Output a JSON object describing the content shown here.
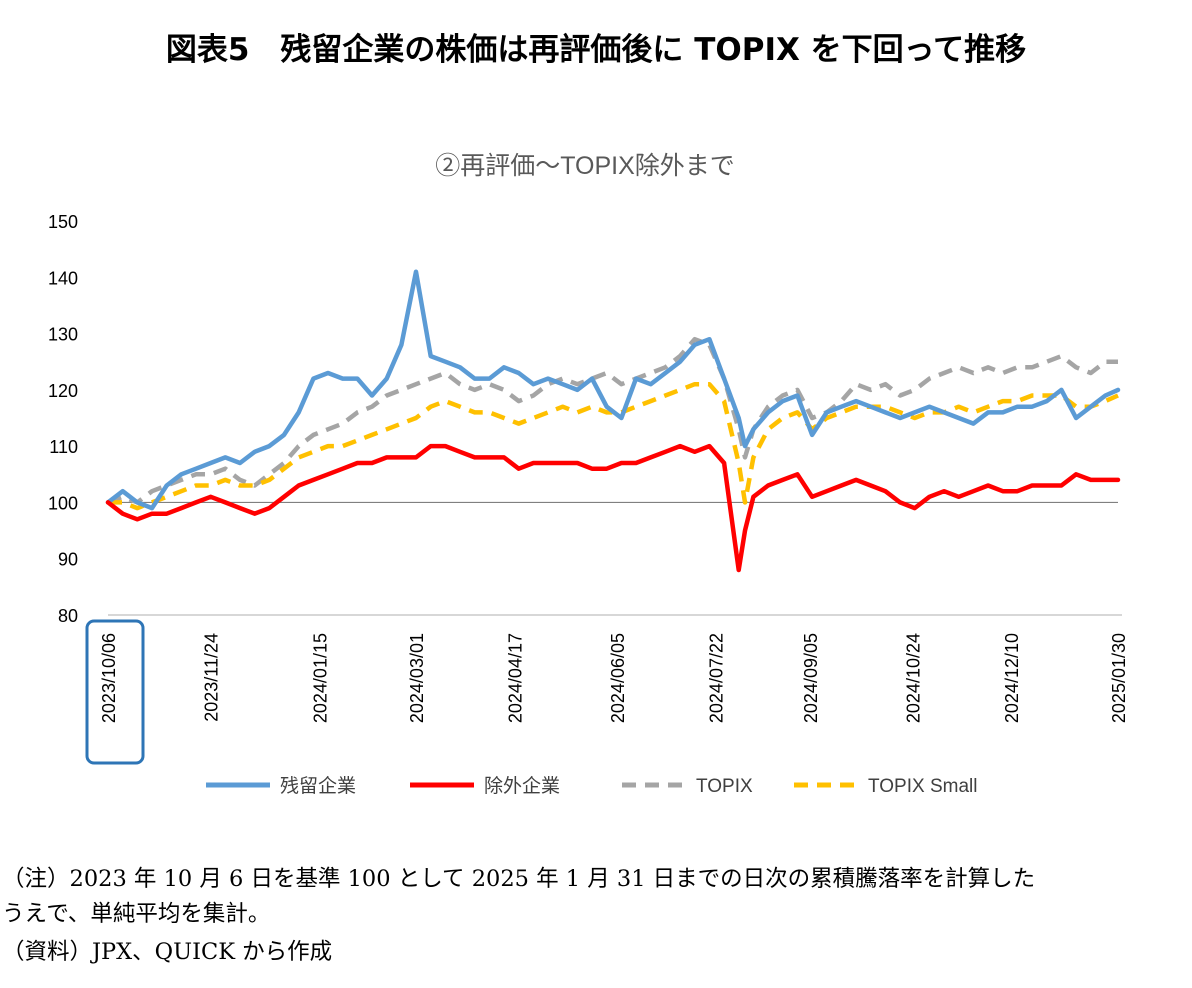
{
  "figure_title": "図表5　残留企業の株価は再評価後に TOPIX を下回って推移",
  "notes": {
    "line1": "（注）2023 年 10 月 6 日を基準 100 として 2025 年 1 月 31 日までの日次の累積騰落率を計算した",
    "line2": "うえで、単純平均を集計。",
    "source": "（資料）JPX、QUICK から作成"
  },
  "chart_data": {
    "type": "line",
    "title": "②再評価～TOPIX除外まで",
    "xlabel": "",
    "ylabel": "",
    "ylim": [
      80,
      150
    ],
    "yticks": [
      80,
      90,
      100,
      110,
      120,
      130,
      140,
      150
    ],
    "reference_line": 100,
    "grid": false,
    "legend_position": "bottom",
    "highlighted_tick": "2023/10/06",
    "x_ticks": [
      "2023/10/06",
      "2023/11/24",
      "2024/01/15",
      "2024/03/01",
      "2024/04/17",
      "2024/06/05",
      "2024/07/22",
      "2024/09/05",
      "2024/10/24",
      "2024/12/10",
      "2025/01/30"
    ],
    "x": [
      "2023/10/06",
      "2023/10/13",
      "2023/10/20",
      "2023/10/27",
      "2023/11/03",
      "2023/11/10",
      "2023/11/17",
      "2023/11/24",
      "2023/12/01",
      "2023/12/08",
      "2023/12/15",
      "2023/12/22",
      "2023/12/29",
      "2024/01/05",
      "2024/01/12",
      "2024/01/19",
      "2024/01/26",
      "2024/02/02",
      "2024/02/09",
      "2024/02/16",
      "2024/02/23",
      "2024/03/01",
      "2024/03/08",
      "2024/03/15",
      "2024/03/22",
      "2024/03/29",
      "2024/04/05",
      "2024/04/12",
      "2024/04/19",
      "2024/04/26",
      "2024/05/03",
      "2024/05/10",
      "2024/05/17",
      "2024/05/24",
      "2024/05/31",
      "2024/06/07",
      "2024/06/14",
      "2024/06/21",
      "2024/06/28",
      "2024/07/05",
      "2024/07/12",
      "2024/07/19",
      "2024/07/26",
      "2024/08/02",
      "2024/08/05",
      "2024/08/09",
      "2024/08/16",
      "2024/08/23",
      "2024/08/30",
      "2024/09/06",
      "2024/09/13",
      "2024/09/20",
      "2024/09/27",
      "2024/10/04",
      "2024/10/11",
      "2024/10/18",
      "2024/10/25",
      "2024/11/01",
      "2024/11/08",
      "2024/11/15",
      "2024/11/22",
      "2024/11/29",
      "2024/12/06",
      "2024/12/13",
      "2024/12/20",
      "2024/12/27",
      "2025/01/03",
      "2025/01/10",
      "2025/01/17",
      "2025/01/24",
      "2025/01/30"
    ],
    "series": [
      {
        "name": "残留企業",
        "color": "#5b9bd5",
        "dash": "solid",
        "values": [
          100,
          102,
          100,
          99,
          103,
          105,
          106,
          107,
          108,
          107,
          109,
          110,
          112,
          116,
          122,
          123,
          122,
          122,
          119,
          122,
          128,
          141,
          126,
          125,
          124,
          122,
          122,
          124,
          123,
          121,
          122,
          121,
          120,
          122,
          117,
          115,
          122,
          121,
          123,
          125,
          128,
          129,
          122,
          115,
          110,
          113,
          116,
          118,
          119,
          112,
          116,
          117,
          118,
          117,
          116,
          115,
          116,
          117,
          116,
          115,
          114,
          116,
          116,
          117,
          117,
          118,
          120,
          115,
          117,
          119,
          120
        ]
      },
      {
        "name": "除外企業",
        "color": "#ff0000",
        "dash": "solid",
        "values": [
          100,
          98,
          97,
          98,
          98,
          99,
          100,
          101,
          100,
          99,
          98,
          99,
          101,
          103,
          104,
          105,
          106,
          107,
          107,
          108,
          108,
          108,
          110,
          110,
          109,
          108,
          108,
          108,
          106,
          107,
          107,
          107,
          107,
          106,
          106,
          107,
          107,
          108,
          109,
          110,
          109,
          110,
          107,
          88,
          95,
          101,
          103,
          104,
          105,
          101,
          102,
          103,
          104,
          103,
          102,
          100,
          99,
          101,
          102,
          101,
          102,
          103,
          102,
          102,
          103,
          103,
          103,
          105,
          104,
          104,
          104
        ]
      },
      {
        "name": "TOPIX",
        "color": "#a5a5a5",
        "dash": "dashed",
        "values": [
          100,
          101,
          100,
          102,
          103,
          104,
          105,
          105,
          106,
          104,
          103,
          105,
          107,
          110,
          112,
          113,
          114,
          116,
          117,
          119,
          120,
          121,
          122,
          123,
          121,
          120,
          121,
          120,
          118,
          119,
          121,
          122,
          121,
          122,
          123,
          121,
          122,
          123,
          124,
          126,
          129,
          128,
          122,
          113,
          108,
          113,
          117,
          119,
          120,
          115,
          116,
          118,
          121,
          120,
          121,
          119,
          120,
          122,
          123,
          124,
          123,
          124,
          123,
          124,
          124,
          125,
          126,
          124,
          123,
          125,
          125
        ]
      },
      {
        "name": "TOPIX Small",
        "color": "#ffc000",
        "dash": "dashed",
        "values": [
          100,
          100,
          99,
          100,
          101,
          102,
          103,
          103,
          104,
          103,
          103,
          104,
          106,
          108,
          109,
          110,
          110,
          111,
          112,
          113,
          114,
          115,
          117,
          118,
          117,
          116,
          116,
          115,
          114,
          115,
          116,
          117,
          116,
          117,
          116,
          116,
          117,
          118,
          119,
          120,
          121,
          121,
          118,
          107,
          100,
          108,
          113,
          115,
          116,
          113,
          115,
          116,
          117,
          117,
          117,
          116,
          115,
          116,
          116,
          117,
          116,
          117,
          118,
          118,
          119,
          119,
          119,
          117,
          117,
          118,
          119
        ]
      }
    ]
  }
}
